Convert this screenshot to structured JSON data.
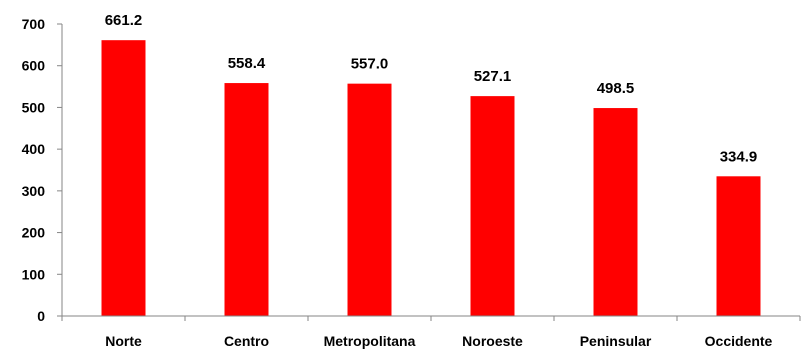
{
  "chart_data": {
    "type": "bar",
    "categories": [
      "Norte",
      "Centro",
      "Metropolitana",
      "Noroeste",
      "Peninsular",
      "Occidente"
    ],
    "values": [
      661.2,
      558.4,
      557.0,
      527.1,
      498.5,
      334.9
    ],
    "data_labels": [
      "661.2",
      "558.4",
      "557.0",
      "527.1",
      "498.5",
      "334.9"
    ],
    "title": "",
    "xlabel": "",
    "ylabel": "",
    "ylim": [
      0,
      700
    ],
    "yticks": [
      0,
      100,
      200,
      300,
      400,
      500,
      600,
      700
    ],
    "grid": false,
    "legend": "none",
    "bar_color": "#ff0000"
  }
}
